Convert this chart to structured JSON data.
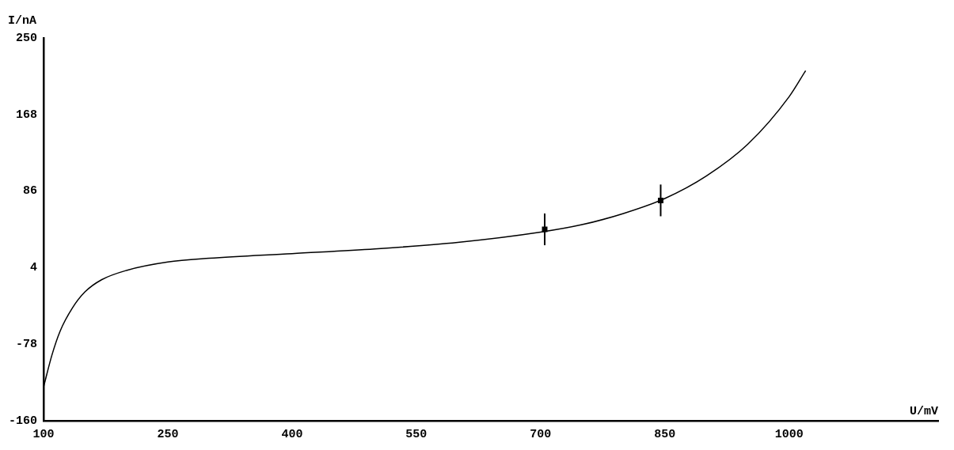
{
  "chart_data": {
    "type": "line",
    "xlabel": "U/mV",
    "ylabel": "I/nA",
    "xlim": [
      100,
      1180
    ],
    "xticks": [
      100,
      250,
      400,
      550,
      700,
      850,
      1000
    ],
    "ylim": [
      -160,
      250
    ],
    "yticks": [
      -160,
      -78,
      4,
      86,
      168,
      250
    ],
    "grid": false,
    "legend": false,
    "series": [
      {
        "type": "line",
        "color": "#000000",
        "marker": "none",
        "x": [
          100,
          110,
          120,
          135,
          150,
          170,
          200,
          250,
          300,
          400,
          500,
          600,
          700,
          750,
          800,
          850,
          900,
          950,
          1000,
          1020
        ],
        "values": [
          -124,
          -90,
          -64,
          -39,
          -22,
          -9,
          1,
          10,
          14,
          19,
          24,
          31,
          42,
          50,
          62,
          78,
          102,
          136,
          187,
          215
        ]
      },
      {
        "type": "scatter",
        "color": "#000000",
        "marker": "square",
        "x": [
          705,
          845
        ],
        "values": [
          45,
          76
        ],
        "errors": [
          17,
          17
        ]
      }
    ]
  }
}
